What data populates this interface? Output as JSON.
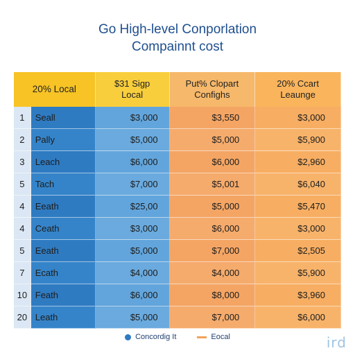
{
  "title": {
    "line1": "Go High-level Conporlation",
    "line2": "Compainnt cost"
  },
  "colors": {
    "title": "#1f4f8f",
    "blue_dark": "#2f7bc2",
    "blue_light": "#62a5dc",
    "orange": "#f4a564",
    "yellow": "#f7c325"
  },
  "chart_data": {
    "type": "table",
    "columns": [
      {
        "label": "20% Local"
      },
      {
        "label": "$31 Sigp\nLocal"
      },
      {
        "label": "Put% Clopart\nConfighs"
      },
      {
        "label": "20% Ccart\nLeaunge"
      }
    ],
    "rows": [
      {
        "num": "1",
        "name": "Seall",
        "values": [
          "$3,000",
          "$3,550",
          "$3,000"
        ]
      },
      {
        "num": "2",
        "name": "Pally",
        "values": [
          "$5,000",
          "$5,000",
          "$5,900"
        ]
      },
      {
        "num": "3",
        "name": "Leach",
        "values": [
          "$6,000",
          "$6,000",
          "$2,960"
        ]
      },
      {
        "num": "5",
        "name": "Tach",
        "values": [
          "$7,000",
          "$5,001",
          "$6,040"
        ]
      },
      {
        "num": "4",
        "name": "Eeath",
        "values": [
          "$25,00",
          "$5,000",
          "$5,470"
        ]
      },
      {
        "num": "4",
        "name": "Ceath",
        "values": [
          "$3,000",
          "$6,000",
          "$3,000"
        ]
      },
      {
        "num": "5",
        "name": "Eeath",
        "values": [
          "$5,000",
          "$7,000",
          "$2,505"
        ]
      },
      {
        "num": "7",
        "name": "Ecath",
        "values": [
          "$4,000",
          "$4,000",
          "$5,900"
        ]
      },
      {
        "num": "10",
        "name": "Feath",
        "values": [
          "$6,000",
          "$8,000",
          "$3,960"
        ]
      },
      {
        "num": "20",
        "name": "Leath",
        "values": [
          "$5,000",
          "$7,000",
          "$6,000"
        ]
      }
    ],
    "legend": [
      {
        "label": "Concordig It",
        "color": "#2f7bc2",
        "marker": "dot"
      },
      {
        "label": "Eocal",
        "color": "#f3a158",
        "marker": "line"
      }
    ]
  },
  "watermark": "ird"
}
